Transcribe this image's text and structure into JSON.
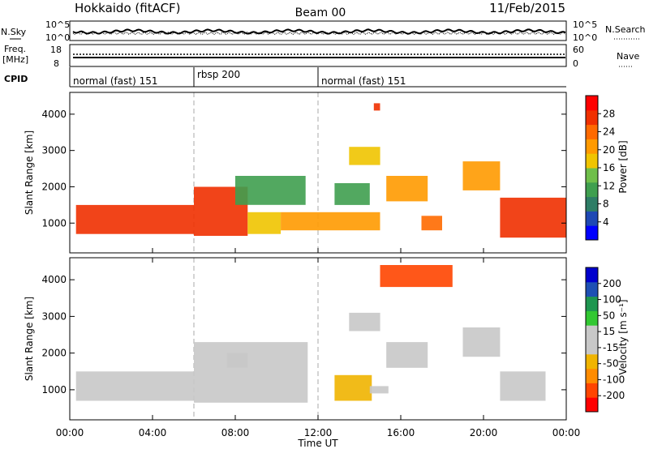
{
  "header": {
    "station": "Hokkaido (fitACF)",
    "beam": "Beam 00",
    "date": "11/Feb/2015"
  },
  "strips": {
    "nsky_label": "N.Sky",
    "nsky_ticks": [
      "10^5",
      "10^0"
    ],
    "nsearch_label": "N.Search",
    "nsearch_ticks": [
      "10^5",
      "10^0"
    ],
    "freq_label": "Freq.",
    "freq_unit": "[MHz]",
    "freq_ticks": [
      "18",
      "8"
    ],
    "nave_label": "Nave",
    "nave_ticks": [
      "60",
      "0"
    ],
    "cpid_label": "CPID"
  },
  "cpid_segments": [
    {
      "start_hour": 0,
      "end_hour": 6,
      "label": "normal (fast) 151"
    },
    {
      "start_hour": 6,
      "end_hour": 12,
      "label": "rbsp 200"
    },
    {
      "start_hour": 12,
      "end_hour": 24,
      "label": "normal (fast) 151"
    }
  ],
  "chart_data": [
    {
      "type": "heatmap",
      "panel": "power",
      "ylabel": "Slant Range [km]",
      "yticks": [
        "4000",
        "3000",
        "2000",
        "1000"
      ],
      "ylim": [
        180,
        4600
      ],
      "xlim": [
        "00:00",
        "24:00"
      ],
      "colorbar": {
        "label": "Power [dB]",
        "ticks": [
          "28",
          "24",
          "20",
          "16",
          "12",
          "8",
          "4"
        ],
        "range": [
          0,
          32
        ],
        "colors": [
          "#0000ff",
          "#1e48b4",
          "#2e7d66",
          "#3f9f4f",
          "#6fbf4a",
          "#f0c400",
          "#ff9a00",
          "#ff6a00",
          "#f03000",
          "#ff0000"
        ]
      },
      "regions": [
        {
          "t0": 0.3,
          "t1": 6.0,
          "r0": 700,
          "r1": 1500,
          "value": 26
        },
        {
          "t0": 6.0,
          "t1": 8.6,
          "r0": 650,
          "r1": 2000,
          "value": 27
        },
        {
          "t0": 8.6,
          "t1": 10.2,
          "r0": 700,
          "r1": 1300,
          "value": 18
        },
        {
          "t0": 8.0,
          "t1": 11.4,
          "r0": 1500,
          "r1": 2300,
          "value": 12
        },
        {
          "t0": 10.2,
          "t1": 15.0,
          "r0": 800,
          "r1": 1300,
          "value": 20
        },
        {
          "t0": 12.8,
          "t1": 14.5,
          "r0": 1500,
          "r1": 2100,
          "value": 10
        },
        {
          "t0": 13.5,
          "t1": 15.0,
          "r0": 2600,
          "r1": 3100,
          "value": 18
        },
        {
          "t0": 15.3,
          "t1": 17.3,
          "r0": 1600,
          "r1": 2300,
          "value": 22
        },
        {
          "t0": 17.0,
          "t1": 18.0,
          "r0": 800,
          "r1": 1200,
          "value": 24
        },
        {
          "t0": 19.0,
          "t1": 20.8,
          "r0": 1900,
          "r1": 2700,
          "value": 22
        },
        {
          "t0": 20.8,
          "t1": 24.0,
          "r0": 600,
          "r1": 1700,
          "value": 27
        },
        {
          "t0": 14.7,
          "t1": 15.0,
          "r0": 4100,
          "r1": 4300,
          "value": 26
        }
      ]
    },
    {
      "type": "heatmap",
      "panel": "velocity",
      "ylabel": "Slant Range [km]",
      "yticks": [
        "4000",
        "3000",
        "2000",
        "1000"
      ],
      "ylim": [
        180,
        4600
      ],
      "xlim": [
        "00:00",
        "24:00"
      ],
      "xlabel": "Time UT",
      "xticks": [
        "00:00",
        "04:00",
        "08:00",
        "12:00",
        "16:00",
        "20:00",
        "00:00"
      ],
      "colorbar": {
        "label": "Velocity [m s⁻¹]",
        "ticks": [
          "200",
          "100",
          "50",
          "15",
          "-15",
          "-50",
          "-100",
          "-200"
        ],
        "range": [
          -250,
          250
        ],
        "colors": [
          "#ff0000",
          "#ff4500",
          "#ff8c00",
          "#f0b400",
          "#c8c8c8",
          "#c8c8c8",
          "#32c832",
          "#1e9650",
          "#1e50b4",
          "#0000cd"
        ]
      },
      "regions": [
        {
          "t0": 0.3,
          "t1": 6.0,
          "r0": 700,
          "r1": 1500,
          "value": 0
        },
        {
          "t0": 6.0,
          "t1": 11.5,
          "r0": 650,
          "r1": 2300,
          "value": 0
        },
        {
          "t0": 7.6,
          "t1": 8.6,
          "r0": 1600,
          "r1": 2000,
          "value": -40
        },
        {
          "t0": 12.8,
          "t1": 14.6,
          "r0": 700,
          "r1": 1400,
          "value": -60
        },
        {
          "t0": 14.5,
          "t1": 15.4,
          "r0": 900,
          "r1": 1100,
          "value": 40
        },
        {
          "t0": 15.3,
          "t1": 17.3,
          "r0": 1600,
          "r1": 2300,
          "value": 0
        },
        {
          "t0": 20.8,
          "t1": 23.0,
          "r0": 700,
          "r1": 1500,
          "value": 40
        },
        {
          "t0": 19.0,
          "t1": 20.8,
          "r0": 1900,
          "r1": 2700,
          "value": 30
        },
        {
          "t0": 13.5,
          "t1": 15.0,
          "r0": 2600,
          "r1": 3100,
          "value": 40
        },
        {
          "t0": 15.0,
          "t1": 18.5,
          "r0": 3800,
          "r1": 4400,
          "value": -200
        }
      ]
    }
  ]
}
